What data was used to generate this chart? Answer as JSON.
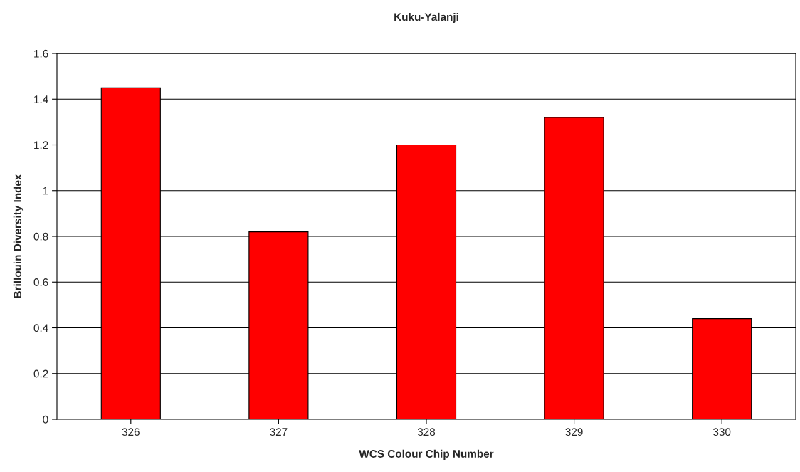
{
  "chart_data": {
    "type": "bar",
    "title": "Kuku-Yalanji",
    "xlabel": "WCS Colour Chip Number",
    "ylabel": "Brillouin Diversity Index",
    "categories": [
      "326",
      "327",
      "328",
      "329",
      "330"
    ],
    "values": [
      1.45,
      0.82,
      1.2,
      1.32,
      0.44
    ],
    "color": "#ff0000",
    "ylim": [
      0,
      1.6
    ],
    "yticks": [
      0,
      0.2,
      0.4,
      0.6,
      0.8,
      1,
      1.2,
      1.4,
      1.6
    ],
    "grid": "y"
  }
}
